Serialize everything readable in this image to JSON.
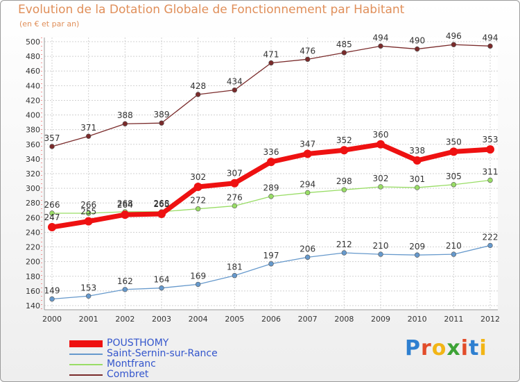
{
  "title": "Evolution de la Dotation Globale de Fonctionnement par Habitant",
  "subtitle": "(en € et par an)",
  "brand": {
    "letters": [
      "P",
      "r",
      "o",
      "x",
      "i",
      "t",
      "i"
    ],
    "colors": [
      "#2e7fd0",
      "#e24c2a",
      "#f2b516",
      "#3da336",
      "#e24c2a",
      "#2e7fd0",
      "#f2b516"
    ]
  },
  "chart_data": {
    "type": "line",
    "x": [
      2000,
      2001,
      2002,
      2003,
      2004,
      2005,
      2006,
      2007,
      2008,
      2009,
      2010,
      2011,
      2012
    ],
    "ylim": [
      140,
      500
    ],
    "yticks": [
      140,
      160,
      180,
      200,
      220,
      240,
      260,
      280,
      300,
      320,
      340,
      360,
      380,
      400,
      420,
      440,
      460,
      480,
      500
    ],
    "grid": true,
    "legend_position": "bottom-left",
    "series": [
      {
        "name": "POUSTHOMY",
        "color": "#ee1111",
        "values": [
          247,
          255,
          264,
          265,
          302,
          307,
          336,
          347,
          352,
          360,
          338,
          350,
          353
        ]
      },
      {
        "name": "Saint-Sernin-sur-Rance",
        "color": "#6699cc",
        "values": [
          149,
          153,
          162,
          164,
          169,
          181,
          197,
          206,
          212,
          210,
          209,
          210,
          222
        ]
      },
      {
        "name": "Montfranc",
        "color": "#99dd66",
        "values": [
          266,
          266,
          268,
          268,
          272,
          276,
          289,
          294,
          298,
          302,
          301,
          305,
          311
        ]
      },
      {
        "name": "Combret",
        "color": "#7a2b2b",
        "values": [
          357,
          371,
          388,
          389,
          428,
          434,
          471,
          476,
          485,
          494,
          490,
          496,
          494
        ]
      }
    ]
  }
}
